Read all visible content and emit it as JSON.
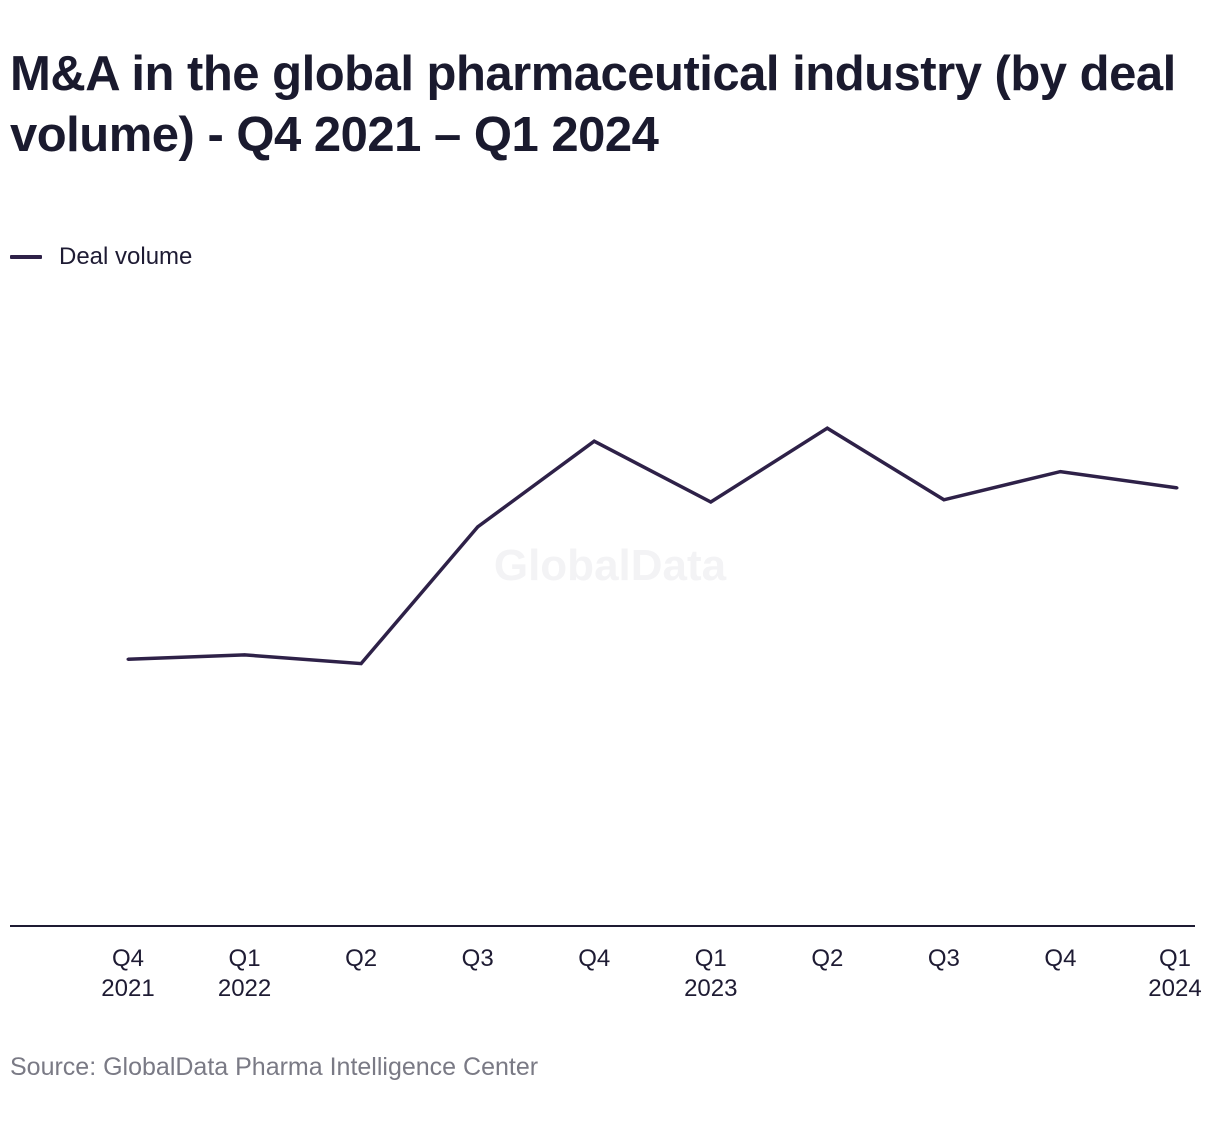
{
  "chart_data": {
    "type": "line",
    "title": "M&A in the global pharmaceutical industry (by deal volume) - Q4 2021 – Q1 2024",
    "categories": [
      [
        "Q4",
        "2021"
      ],
      [
        "Q1",
        "2022"
      ],
      [
        "Q2",
        ""
      ],
      [
        "Q3",
        ""
      ],
      [
        "Q4",
        ""
      ],
      [
        "Q1",
        "2023"
      ],
      [
        "Q2",
        ""
      ],
      [
        "Q3",
        ""
      ],
      [
        "Q4",
        ""
      ],
      [
        "Q1",
        "2024"
      ]
    ],
    "series": [
      {
        "name": "Deal volume",
        "color": "#2e2148",
        "values": [
          246,
          250,
          242,
          368,
          447,
          391,
          459,
          393,
          419,
          404
        ]
      }
    ],
    "ylim": [
      0,
      580
    ],
    "grid": false,
    "legend": "top-left",
    "watermark": "GlobalData",
    "source": "Source: GlobalData Pharma Intelligence Center"
  }
}
